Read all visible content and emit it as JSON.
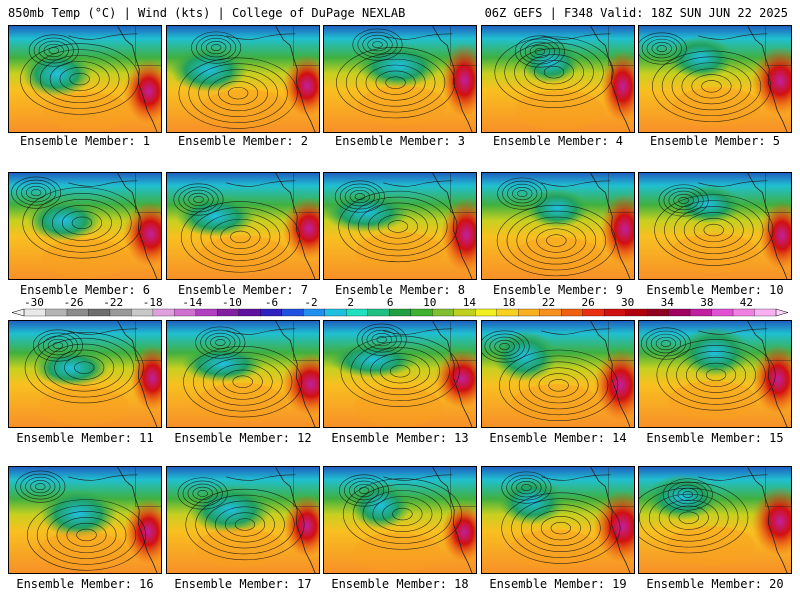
{
  "header": {
    "left": "850mb Temp (°C) | Wind (kts) | College of DuPage NEXLAB",
    "right": "06Z GEFS | F348 Valid: 18Z SUN JUN 22 2025"
  },
  "panels": [
    {
      "label": "Ensemble Member: 1"
    },
    {
      "label": "Ensemble Member: 2"
    },
    {
      "label": "Ensemble Member: 3"
    },
    {
      "label": "Ensemble Member: 4"
    },
    {
      "label": "Ensemble Member: 5"
    },
    {
      "label": "Ensemble Member: 6"
    },
    {
      "label": "Ensemble Member: 7"
    },
    {
      "label": "Ensemble Member: 8"
    },
    {
      "label": "Ensemble Member: 9"
    },
    {
      "label": "Ensemble Member: 10"
    },
    {
      "label": "Ensemble Member: 11"
    },
    {
      "label": "Ensemble Member: 12"
    },
    {
      "label": "Ensemble Member: 13"
    },
    {
      "label": "Ensemble Member: 14"
    },
    {
      "label": "Ensemble Member: 15"
    },
    {
      "label": "Ensemble Member: 16"
    },
    {
      "label": "Ensemble Member: 17"
    },
    {
      "label": "Ensemble Member: 18"
    },
    {
      "label": "Ensemble Member: 19"
    },
    {
      "label": "Ensemble Member: 20"
    }
  ],
  "colorbar": {
    "labels": [
      "-30",
      "-26",
      "-22",
      "-18",
      "-14",
      "-10",
      "-6",
      "-2",
      "2",
      "6",
      "10",
      "14",
      "18",
      "22",
      "26",
      "30",
      "34",
      "38",
      "42"
    ],
    "colors": [
      "#e8e8e8",
      "#b4b4b4",
      "#8c8c8c",
      "#6e6e6e",
      "#9a9a9a",
      "#c8c8c8",
      "#e0a0e0",
      "#d070d0",
      "#b040c0",
      "#8020a0",
      "#6010a0",
      "#3020c0",
      "#2050e0",
      "#2090f0",
      "#20c0e0",
      "#20e0c0",
      "#20c080",
      "#20a040",
      "#40b030",
      "#80c030",
      "#c0d020",
      "#f0f020",
      "#f8d020",
      "#f8b020",
      "#f89020",
      "#f06010",
      "#e83010",
      "#d01010",
      "#b00010",
      "#900020",
      "#a00060",
      "#c020a0",
      "#e050d0",
      "#f080e0",
      "#f8b0f0"
    ]
  }
}
